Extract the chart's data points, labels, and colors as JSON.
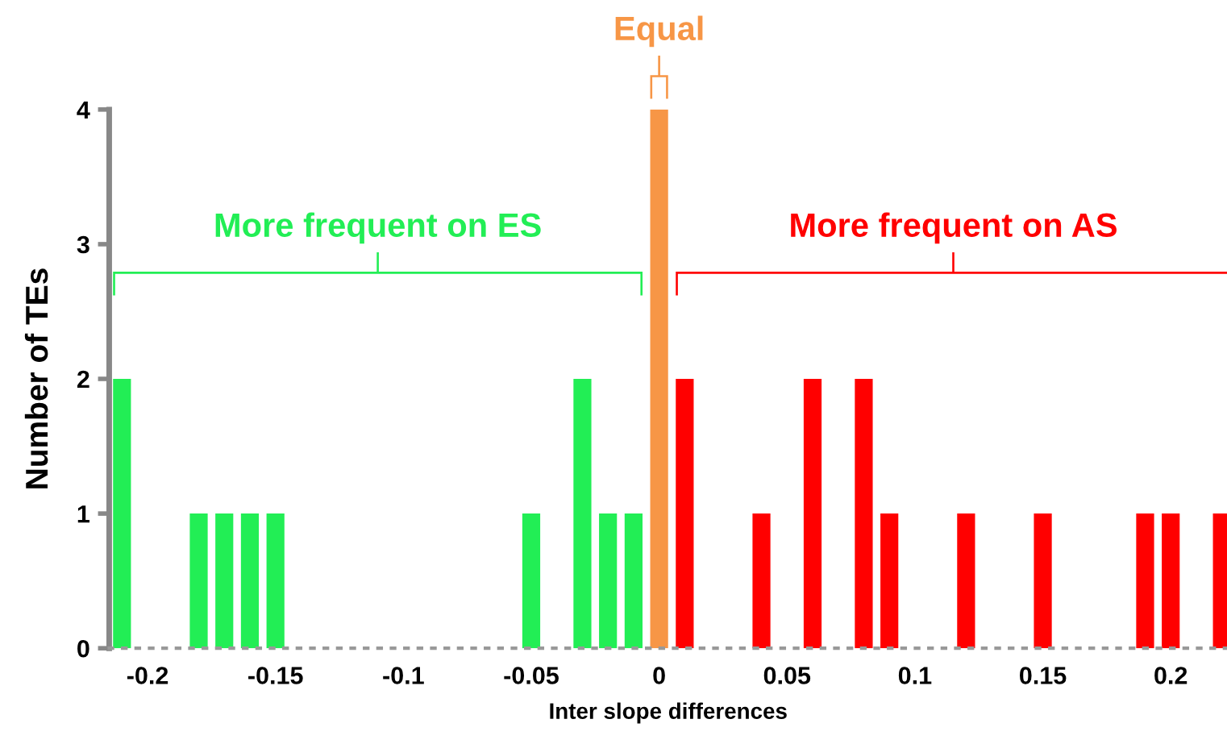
{
  "chart_data": {
    "type": "bar",
    "xlabel": "Inter slope differences",
    "ylabel": "Number of TEs",
    "series": [
      {
        "color": "#22ee55",
        "x": [
          -0.21,
          -0.18,
          -0.17,
          -0.16,
          -0.15,
          -0.05,
          -0.03,
          -0.02,
          -0.01
        ],
        "values": [
          2,
          1,
          1,
          1,
          1,
          1,
          2,
          1,
          1
        ]
      },
      {
        "color": "#f79646",
        "x": [
          0
        ],
        "values": [
          4
        ]
      },
      {
        "color": "#ff0000",
        "x": [
          0.01,
          0.04,
          0.06,
          0.08,
          0.09,
          0.12,
          0.15,
          0.19,
          0.2,
          0.22
        ],
        "values": [
          2,
          1,
          2,
          2,
          1,
          1,
          1,
          1,
          1,
          1
        ]
      }
    ],
    "annotations": [
      "More frequent on ES",
      "Equal",
      "More frequent on AS"
    ],
    "xlim": [
      -0.215,
      0.222
    ],
    "ylim": [
      0,
      4
    ],
    "xticks": [
      -0.2,
      -0.15,
      -0.1,
      -0.05,
      0,
      0.05,
      0.1,
      0.15,
      0.2
    ],
    "yticks": [
      0,
      1,
      2,
      3,
      4
    ],
    "grid": false,
    "legend": false
  }
}
